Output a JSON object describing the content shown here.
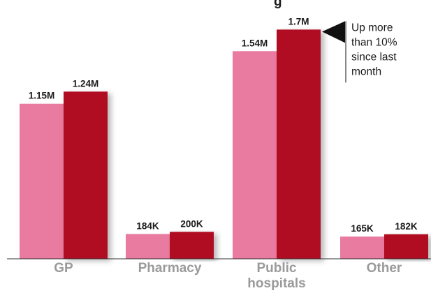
{
  "chart_data": {
    "type": "bar",
    "title_fragment": "g",
    "categories": [
      "GP",
      "Pharmacy",
      "Public hospitals",
      "Other"
    ],
    "category_label_lines": [
      [
        "GP"
      ],
      [
        "Pharmacy"
      ],
      [
        "Public",
        "hospitals"
      ],
      [
        "Other"
      ]
    ],
    "series": [
      {
        "values": [
          1150000,
          184000,
          1540000,
          165000
        ],
        "labels": [
          "1.15M",
          "184K",
          "1.54M",
          "165K"
        ]
      },
      {
        "values": [
          1240000,
          200000,
          1700000,
          182000
        ],
        "labels": [
          "1.24M",
          "200K",
          "1.7M",
          "182K"
        ]
      }
    ],
    "annotation": {
      "text_lines": [
        "Up more",
        "than 10%",
        "since last",
        "month"
      ],
      "category": "Public hospitals",
      "series_index": 1
    },
    "ylim": [
      0,
      1790000
    ],
    "grid": false,
    "colors": {
      "series_0": "#e97aa0",
      "series_1": "#b01020",
      "axis": "#333333",
      "category_label": "#9a9a9a",
      "annotation": "#111111"
    }
  }
}
